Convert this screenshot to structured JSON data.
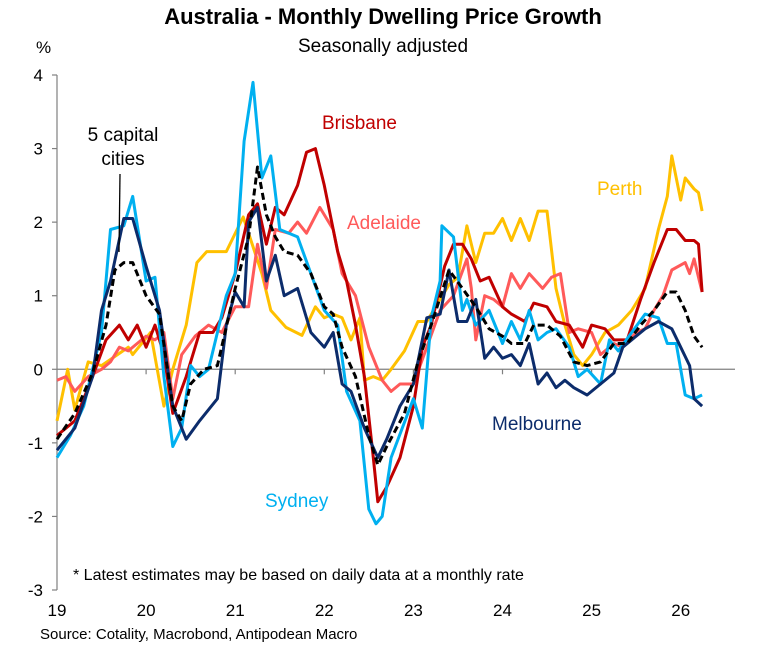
{
  "chart_data": {
    "type": "line",
    "title": "Australia - Monthly Dwelling Price Growth",
    "subtitle": "Seasonally adjusted",
    "ylabel": "%",
    "xlabel": "",
    "ylim": [
      -3,
      4
    ],
    "xlim": [
      19,
      26.8
    ],
    "yticks": [
      "4",
      "3",
      "2",
      "1",
      "0",
      "-1",
      "-2",
      "-3"
    ],
    "xticks": [
      "19",
      "20",
      "21",
      "22",
      "23",
      "24",
      "25",
      "26"
    ],
    "grid": false,
    "footnote": "* Latest estimates may be based on daily data at a monthly rate",
    "source": "Source: Cotality, Macrobond, Antipodean Macro",
    "series": [
      {
        "name": "Sydney",
        "color": "#00B0F0",
        "dashed": false,
        "x": [
          19.0,
          19.15,
          19.3,
          19.5,
          19.6,
          19.75,
          19.85,
          20.0,
          20.1,
          20.2,
          20.3,
          20.4,
          20.5,
          20.6,
          20.7,
          20.9,
          21.0,
          21.1,
          21.2,
          21.3,
          21.4,
          21.5,
          21.7,
          21.85,
          22.0,
          22.15,
          22.25,
          22.4,
          22.5,
          22.58,
          22.65,
          22.75,
          23.0,
          23.1,
          23.2,
          23.3,
          23.32,
          23.45,
          23.55,
          23.6,
          23.7,
          23.85,
          24.0,
          24.1,
          24.2,
          24.3,
          24.4,
          24.5,
          24.6,
          24.75,
          24.85,
          24.95,
          25.1,
          25.2,
          25.3,
          25.45,
          25.6,
          25.75,
          25.85,
          25.95,
          26.05,
          26.15,
          26.24
        ],
        "y": [
          -1.2,
          -0.9,
          -0.5,
          0.5,
          1.9,
          1.95,
          2.35,
          1.2,
          1.25,
          -0.1,
          -1.05,
          -0.8,
          0.05,
          -0.1,
          0.0,
          1.0,
          1.3,
          3.1,
          3.9,
          2.6,
          2.9,
          1.9,
          1.8,
          1.3,
          0.8,
          0.6,
          -0.3,
          -0.7,
          -1.9,
          -2.1,
          -2.0,
          -1.2,
          -0.4,
          -0.8,
          0.7,
          1.2,
          1.95,
          1.8,
          0.8,
          0.95,
          0.6,
          0.8,
          0.35,
          0.65,
          0.4,
          0.8,
          0.4,
          0.5,
          0.55,
          0.3,
          -0.1,
          0.0,
          -0.2,
          0.4,
          0.25,
          0.5,
          0.75,
          0.7,
          0.35,
          0.35,
          -0.35,
          -0.4,
          -0.35
        ]
      },
      {
        "name": "Melbourne",
        "color": "#0C2C6B",
        "dashed": false,
        "x": [
          19.0,
          19.2,
          19.4,
          19.5,
          19.6,
          19.75,
          19.85,
          20.0,
          20.15,
          20.3,
          20.45,
          20.6,
          20.8,
          20.9,
          21.0,
          21.1,
          21.15,
          21.25,
          21.35,
          21.45,
          21.55,
          21.7,
          21.85,
          22.0,
          22.1,
          22.2,
          22.3,
          22.45,
          22.6,
          22.7,
          22.85,
          23.0,
          23.15,
          23.3,
          23.4,
          23.5,
          23.6,
          23.7,
          23.8,
          23.9,
          24.0,
          24.1,
          24.2,
          24.3,
          24.4,
          24.5,
          24.6,
          24.7,
          24.8,
          24.95,
          25.1,
          25.25,
          25.35,
          25.5,
          25.6,
          25.75,
          25.9,
          26.0,
          26.1,
          26.15,
          26.24
        ],
        "y": [
          -1.1,
          -0.8,
          -0.1,
          0.8,
          1.2,
          2.05,
          2.05,
          1.4,
          0.8,
          -0.5,
          -0.95,
          -0.7,
          -0.4,
          0.6,
          1.05,
          0.85,
          2.0,
          2.2,
          1.2,
          1.55,
          1.0,
          1.1,
          0.5,
          0.3,
          0.5,
          -0.2,
          -0.3,
          -0.8,
          -1.2,
          -0.95,
          -0.5,
          -0.2,
          0.7,
          0.75,
          1.35,
          0.65,
          0.65,
          0.95,
          0.15,
          0.3,
          0.15,
          0.2,
          0.05,
          0.35,
          -0.2,
          -0.05,
          -0.25,
          -0.15,
          -0.25,
          -0.35,
          -0.2,
          -0.05,
          0.3,
          0.45,
          0.55,
          0.65,
          0.55,
          0.3,
          0.05,
          -0.4,
          -0.5
        ]
      },
      {
        "name": "Brisbane",
        "color": "#C00000",
        "dashed": false,
        "x": [
          19.0,
          19.2,
          19.4,
          19.55,
          19.7,
          19.8,
          19.9,
          20.0,
          20.1,
          20.2,
          20.3,
          20.45,
          20.6,
          20.75,
          20.85,
          21.0,
          21.15,
          21.25,
          21.35,
          21.45,
          21.55,
          21.7,
          21.8,
          21.9,
          22.0,
          22.15,
          22.25,
          22.35,
          22.45,
          22.55,
          22.6,
          22.7,
          22.85,
          23.0,
          23.1,
          23.2,
          23.35,
          23.45,
          23.55,
          23.65,
          23.75,
          23.85,
          24.0,
          24.1,
          24.25,
          24.35,
          24.5,
          24.6,
          24.75,
          24.9,
          25.0,
          25.15,
          25.25,
          25.4,
          25.55,
          25.7,
          25.85,
          25.95,
          26.05,
          26.15,
          26.2,
          26.24
        ],
        "y": [
          -0.9,
          -0.7,
          -0.1,
          0.4,
          0.6,
          0.4,
          0.6,
          0.3,
          0.6,
          0.2,
          -0.6,
          -0.1,
          0.5,
          0.5,
          0.7,
          1.3,
          2.1,
          2.25,
          1.7,
          2.2,
          2.1,
          2.5,
          2.95,
          3.0,
          2.5,
          1.6,
          1.2,
          0.6,
          -0.1,
          -1.2,
          -1.8,
          -1.6,
          -1.2,
          -0.5,
          0.3,
          0.6,
          1.4,
          1.7,
          1.7,
          1.5,
          1.2,
          1.25,
          0.85,
          0.75,
          0.65,
          0.9,
          0.85,
          0.65,
          0.6,
          0.3,
          0.6,
          0.55,
          0.4,
          0.4,
          0.95,
          1.45,
          1.9,
          1.9,
          1.75,
          1.75,
          1.7,
          1.05
        ]
      },
      {
        "name": "Adelaide",
        "color": "#FF5A5A",
        "dashed": false,
        "x": [
          19.0,
          19.1,
          19.2,
          19.35,
          19.5,
          19.6,
          19.7,
          19.8,
          19.9,
          20.0,
          20.1,
          20.2,
          20.3,
          20.4,
          20.55,
          20.7,
          20.85,
          21.0,
          21.15,
          21.25,
          21.35,
          21.45,
          21.6,
          21.7,
          21.8,
          21.95,
          22.1,
          22.2,
          22.35,
          22.5,
          22.65,
          22.75,
          22.85,
          23.0,
          23.15,
          23.3,
          23.45,
          23.6,
          23.65,
          23.7,
          23.8,
          23.9,
          24.0,
          24.1,
          24.2,
          24.3,
          24.45,
          24.55,
          24.65,
          24.75,
          24.85,
          25.0,
          25.1,
          25.25,
          25.35,
          25.5,
          25.6,
          25.7,
          25.8,
          25.9,
          26.05,
          26.1,
          26.15,
          26.2,
          26.24
        ],
        "y": [
          -0.15,
          -0.1,
          -0.3,
          -0.1,
          0.0,
          0.1,
          0.3,
          0.25,
          0.35,
          0.45,
          0.4,
          0.5,
          -0.4,
          0.2,
          0.45,
          0.6,
          0.5,
          0.85,
          0.85,
          1.7,
          1.1,
          1.9,
          1.85,
          2.0,
          1.85,
          2.2,
          1.9,
          1.3,
          1.0,
          0.3,
          -0.15,
          -0.3,
          -0.2,
          -0.2,
          0.3,
          0.8,
          1.0,
          1.5,
          1.1,
          0.4,
          1.0,
          0.95,
          0.85,
          1.3,
          1.1,
          1.3,
          1.1,
          1.25,
          1.3,
          0.5,
          0.55,
          0.5,
          0.2,
          0.35,
          0.3,
          0.5,
          0.55,
          0.8,
          1.0,
          1.35,
          1.45,
          1.3,
          1.5,
          1.25,
          1.05
        ]
      },
      {
        "name": "Perth",
        "color": "#FFC000",
        "dashed": false,
        "x": [
          19.0,
          19.12,
          19.2,
          19.35,
          19.5,
          19.8,
          19.85,
          20.05,
          20.2,
          20.3,
          20.45,
          20.57,
          20.68,
          20.9,
          21.09,
          21.3,
          21.4,
          21.57,
          21.75,
          21.9,
          22.0,
          22.1,
          22.2,
          22.3,
          22.4,
          22.45,
          22.55,
          22.65,
          22.75,
          22.9,
          23.05,
          23.15,
          23.4,
          23.5,
          23.6,
          23.7,
          23.8,
          23.9,
          24.0,
          24.1,
          24.2,
          24.3,
          24.4,
          24.5,
          24.6,
          24.7,
          24.8,
          24.9,
          25.0,
          25.15,
          25.3,
          25.45,
          25.6,
          25.75,
          25.85,
          25.9,
          26.0,
          26.05,
          26.15,
          26.2,
          26.24
        ],
        "y": [
          -0.7,
          0.0,
          -0.55,
          0.1,
          0.05,
          0.3,
          0.2,
          0.5,
          -0.5,
          0.0,
          0.6,
          1.45,
          1.6,
          1.6,
          2.07,
          1.3,
          0.8,
          0.57,
          0.46,
          0.85,
          0.7,
          0.75,
          0.7,
          0.4,
          0.7,
          -0.15,
          -0.1,
          -0.15,
          0.0,
          0.25,
          0.65,
          0.65,
          1.15,
          1.25,
          1.95,
          1.45,
          1.85,
          1.85,
          2.05,
          1.75,
          2.05,
          1.75,
          2.15,
          2.15,
          1.1,
          0.6,
          0.2,
          0.05,
          0.2,
          0.5,
          0.6,
          0.8,
          1.1,
          1.9,
          2.35,
          2.9,
          2.3,
          2.6,
          2.45,
          2.4,
          2.15
        ]
      },
      {
        "name": "5 capital cities",
        "color": "#000000",
        "dashed": true,
        "x": [
          19.0,
          19.2,
          19.4,
          19.55,
          19.65,
          19.75,
          19.85,
          20.0,
          20.15,
          20.3,
          20.4,
          20.5,
          20.65,
          20.8,
          21.0,
          21.15,
          21.25,
          21.35,
          21.45,
          21.55,
          21.7,
          21.85,
          22.0,
          22.1,
          22.2,
          22.35,
          22.5,
          22.6,
          22.7,
          22.9,
          23.05,
          23.2,
          23.4,
          23.55,
          23.7,
          23.85,
          24.0,
          24.1,
          24.25,
          24.35,
          24.5,
          24.65,
          24.8,
          24.95,
          25.1,
          25.25,
          25.4,
          25.55,
          25.7,
          25.85,
          25.95,
          26.05,
          26.15,
          26.24
        ],
        "y": [
          -0.95,
          -0.6,
          -0.05,
          0.6,
          1.35,
          1.45,
          1.45,
          1.0,
          0.75,
          -0.5,
          -0.7,
          -0.2,
          0.0,
          0.05,
          1.1,
          1.8,
          2.75,
          2.1,
          1.8,
          1.6,
          1.55,
          1.3,
          0.85,
          0.75,
          0.3,
          -0.1,
          -0.9,
          -1.3,
          -1.05,
          -0.6,
          0.1,
          0.6,
          1.35,
          1.1,
          0.85,
          0.55,
          0.45,
          0.35,
          0.35,
          0.6,
          0.6,
          0.45,
          0.1,
          0.05,
          0.1,
          0.35,
          0.35,
          0.6,
          0.8,
          1.05,
          1.05,
          0.8,
          0.45,
          0.3
        ]
      }
    ]
  }
}
